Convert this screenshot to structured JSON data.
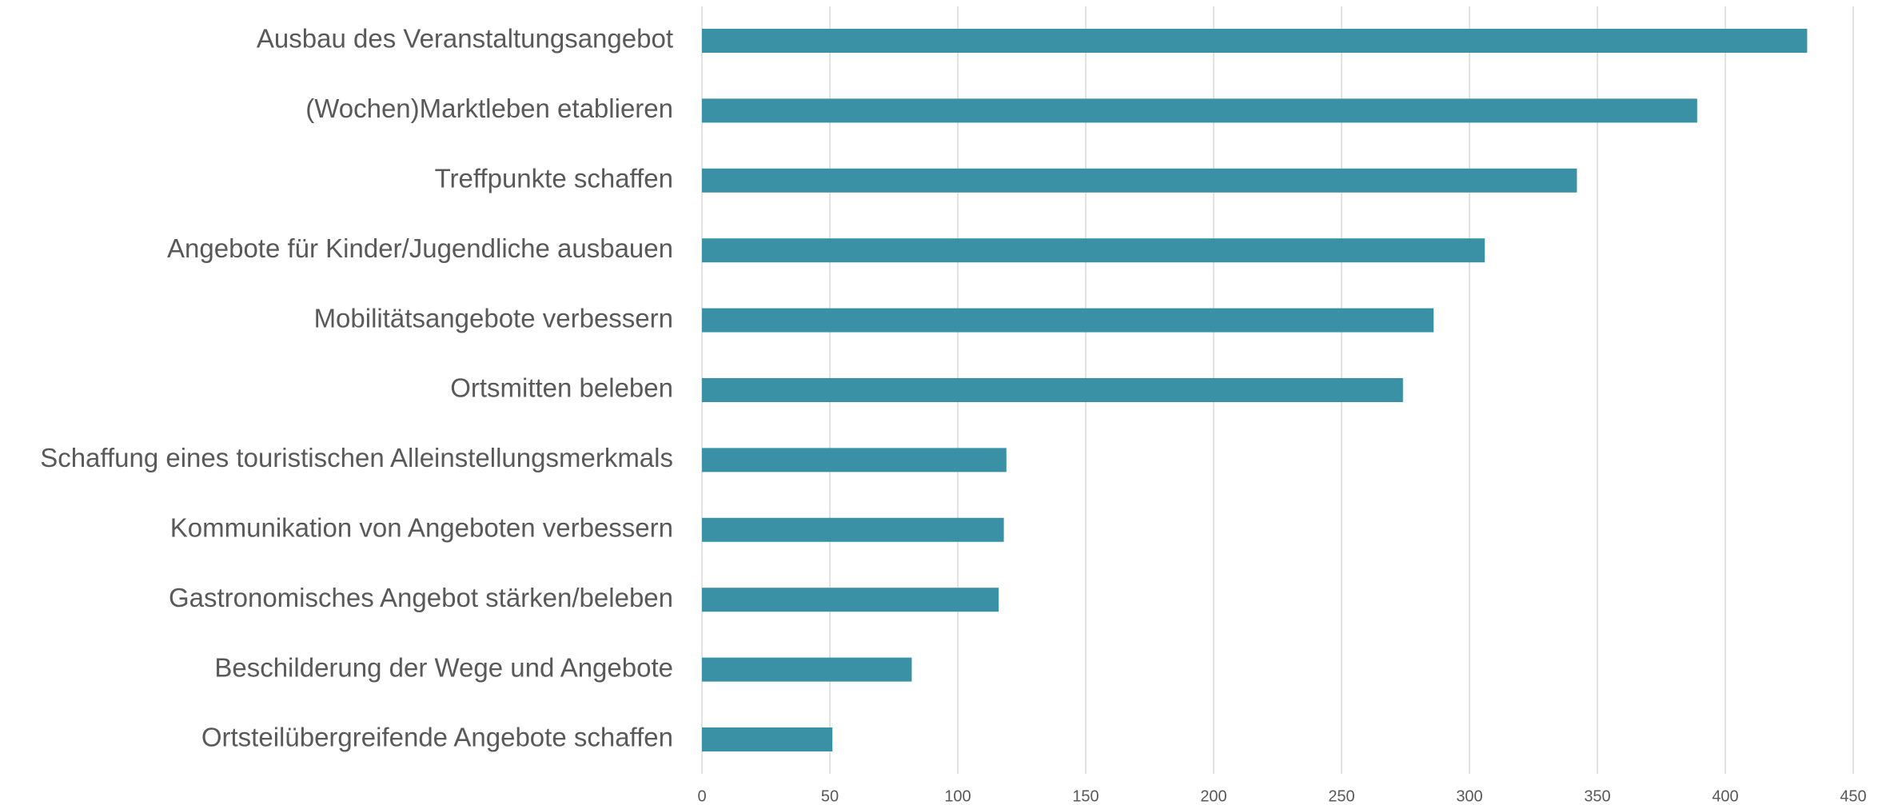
{
  "chart_data": {
    "type": "bar",
    "orientation": "horizontal",
    "categories": [
      "Ausbau des Veranstaltungsangebot",
      "(Wochen)Marktleben etablieren",
      "Treffpunkte schaffen",
      "Angebote für Kinder/Jugendliche ausbauen",
      "Mobilitätsangebote verbessern",
      "Ortsmitten beleben",
      "Schaffung eines touristischen Alleinstellungsmerkmals",
      "Kommunikation von Angeboten verbessern",
      "Gastronomisches Angebot stärken/beleben",
      "Beschilderung der Wege und Angebote",
      "Ortsteilübergreifende Angebote schaffen"
    ],
    "values": [
      432,
      389,
      342,
      306,
      286,
      274,
      119,
      118,
      116,
      82,
      51
    ],
    "color": "#3a91a6",
    "xlim": [
      0,
      450
    ],
    "xticks": [
      0,
      50,
      100,
      150,
      200,
      250,
      300,
      350,
      400,
      450
    ],
    "grid": true
  }
}
